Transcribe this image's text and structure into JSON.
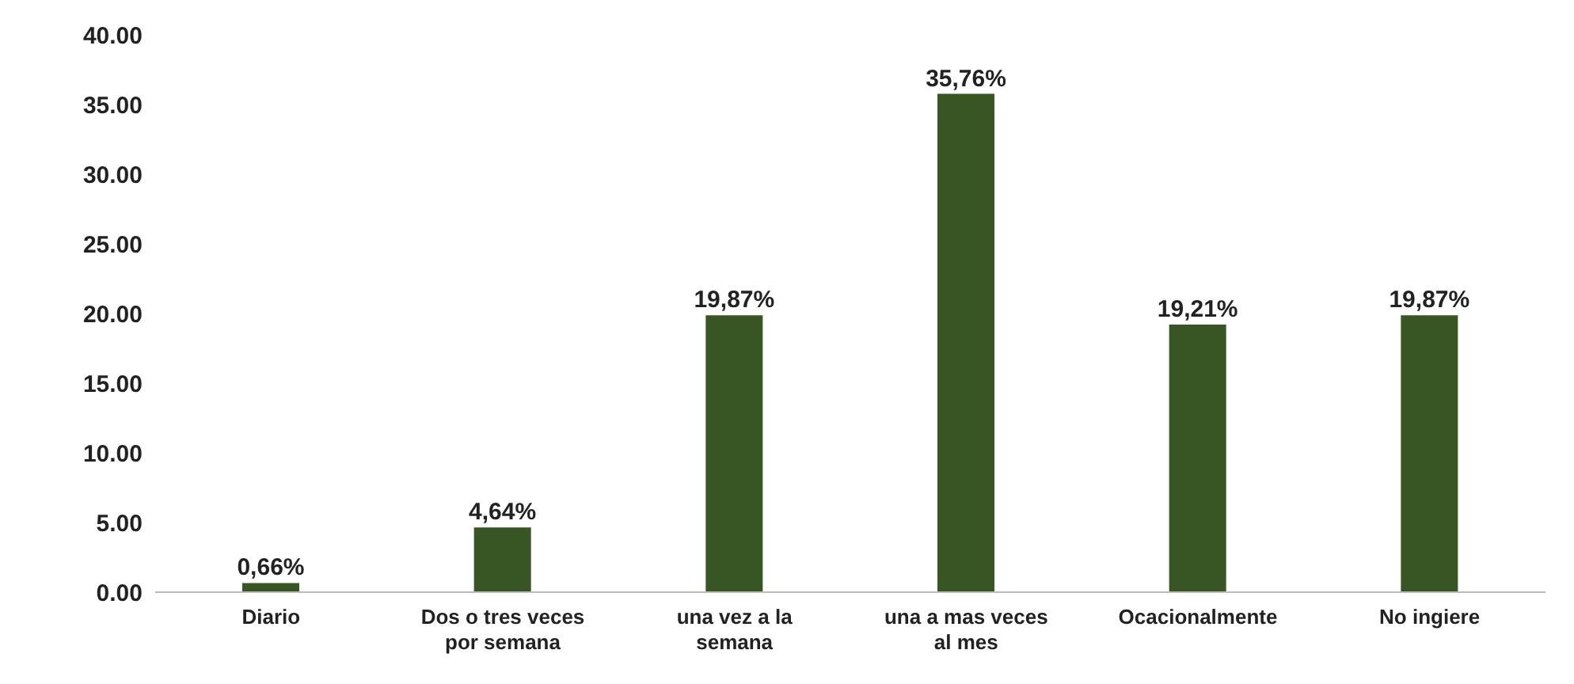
{
  "chart_data": {
    "type": "bar",
    "categories": [
      "Diario",
      "Dos o tres veces por semana",
      "una vez a la semana",
      "una a mas veces al mes",
      "Ocacionalmente",
      "No ingiere"
    ],
    "values": [
      0.66,
      4.64,
      19.87,
      35.76,
      19.21,
      19.87
    ],
    "value_labels": [
      "0,66%",
      "4,64%",
      "19,87%",
      "35,76%",
      "19,21%",
      "19,87%"
    ],
    "color": "#375623",
    "ylim": [
      0,
      40
    ],
    "yticks": [
      {
        "value": 0,
        "label": "0.00"
      },
      {
        "value": 5,
        "label": "5.00"
      },
      {
        "value": 10,
        "label": "10.00"
      },
      {
        "value": 15,
        "label": "15.00"
      },
      {
        "value": 20,
        "label": "20.00"
      },
      {
        "value": 25,
        "label": "25.00"
      },
      {
        "value": 30,
        "label": "30.00"
      },
      {
        "value": 35,
        "label": "35.00"
      },
      {
        "value": 40,
        "label": "40.00"
      }
    ],
    "grid": false,
    "legend": false
  }
}
